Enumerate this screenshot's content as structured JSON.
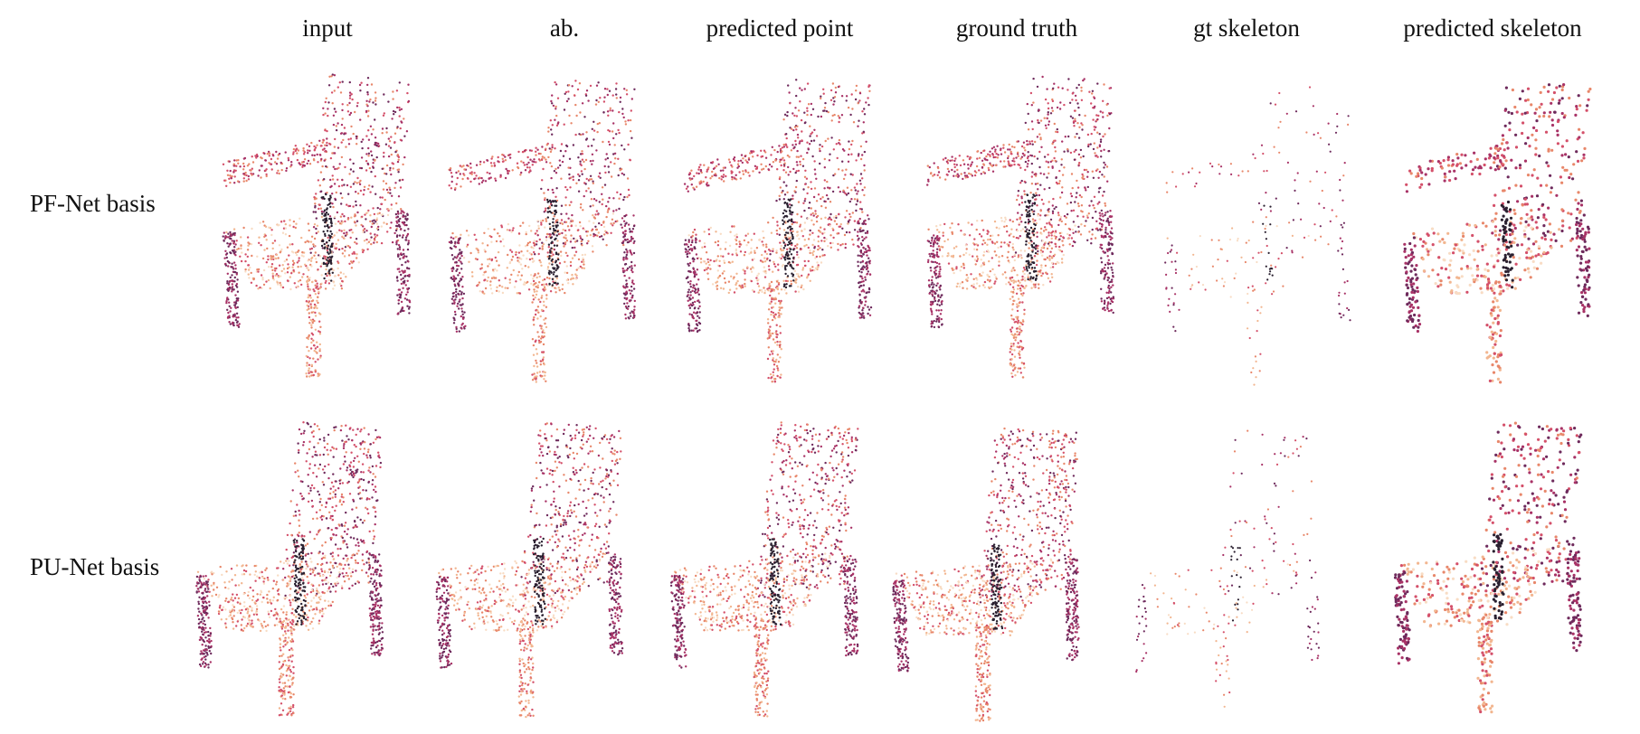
{
  "figure": {
    "columns": [
      "input",
      "ab.",
      "predicted point",
      "ground truth",
      "gt skeleton",
      "predicted skeleton"
    ],
    "rows": [
      "PF-Net basis",
      "PU-Net basis"
    ]
  },
  "palette": {
    "dark": "#2a2030",
    "plum": "#6e2a5c",
    "magenta": "#a83266",
    "rose": "#d4506a",
    "coral": "#e8876a",
    "peach": "#f2b690",
    "cream": "#f8dcc4"
  }
}
